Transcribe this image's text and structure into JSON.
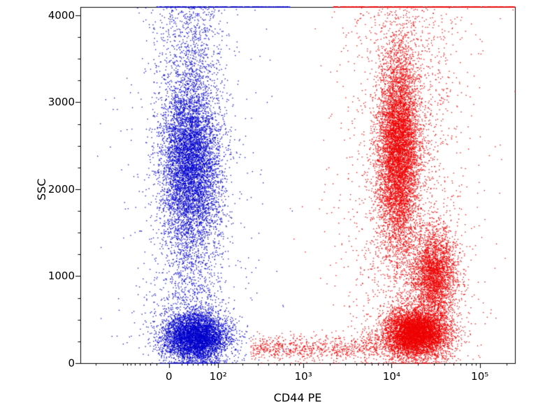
{
  "chart_data": {
    "type": "scatter",
    "title": "",
    "xlabel": "CD44 PE",
    "ylabel": "SSC",
    "grid": false,
    "legend": "none",
    "x_scale": {
      "type": "biexponential",
      "asinh_scale": 60,
      "domain_min": -300,
      "domain_max": 250000
    },
    "y_scale": {
      "type": "linear",
      "min": 0,
      "max": 4095,
      "minor_step": 250
    },
    "x_ticks": [
      {
        "value": 0,
        "label": "0"
      },
      {
        "value": 100,
        "label": "10²"
      },
      {
        "value": 1000,
        "label": "10³"
      },
      {
        "value": 10000,
        "label": "10⁴"
      },
      {
        "value": 100000,
        "label": "10⁵"
      }
    ],
    "y_ticks": [
      {
        "value": 0,
        "label": "0"
      },
      {
        "value": 1000,
        "label": "1000"
      },
      {
        "value": 2000,
        "label": "2000"
      },
      {
        "value": 3000,
        "label": "3000"
      },
      {
        "value": 4000,
        "label": "4000"
      }
    ],
    "colors": {
      "blue_population": "#0000cd",
      "red_population": "#ee0000",
      "axis": "#000000",
      "background": "#ffffff"
    },
    "seed": 42,
    "populations": [
      {
        "name": "blue-negative-core-upper",
        "color": "#0000cd",
        "n": 5200,
        "x": {
          "type": "gauss_t",
          "center": 35,
          "sigma_t": 0.38
        },
        "y": {
          "type": "gauss",
          "center": 2300,
          "sigma": 470
        }
      },
      {
        "name": "blue-negative-core-lower",
        "color": "#0000cd",
        "n": 4800,
        "x": {
          "type": "gauss_t",
          "center": 45,
          "sigma_t": 0.42
        },
        "y": {
          "type": "gauss",
          "center": 300,
          "sigma": 140
        }
      },
      {
        "name": "blue-negative-column",
        "color": "#0000cd",
        "n": 2800,
        "x": {
          "type": "gauss_t",
          "center": 35,
          "sigma_t": 0.45
        },
        "y": {
          "type": "uniform",
          "min": 0,
          "max": 4095
        }
      },
      {
        "name": "blue-stray",
        "color": "#0000cd",
        "n": 500,
        "x": {
          "type": "gauss_t",
          "center": 40,
          "sigma_t": 0.95
        },
        "y": {
          "type": "uniform",
          "min": 0,
          "max": 4095
        }
      },
      {
        "name": "blue-top-pileup",
        "color": "#0000cd",
        "n": 420,
        "x": {
          "type": "uniform_t",
          "min": -20,
          "max": 700
        },
        "y": {
          "type": "const",
          "value": 4095
        }
      },
      {
        "name": "red-positive-band-upper",
        "color": "#ee0000",
        "n": 7200,
        "x": {
          "type": "gauss_t",
          "center": 12000,
          "sigma_t": 0.27
        },
        "y": {
          "type": "gauss",
          "center": 2450,
          "sigma": 580
        }
      },
      {
        "name": "red-positive-blob-low-ssc",
        "color": "#ee0000",
        "n": 6200,
        "x": {
          "type": "gauss_t",
          "center": 19000,
          "sigma_t": 0.42
        },
        "y": {
          "type": "gauss",
          "center": 340,
          "sigma": 140
        }
      },
      {
        "name": "red-positive-cluster-mid",
        "color": "#ee0000",
        "n": 3000,
        "x": {
          "type": "gauss_t",
          "center": 30000,
          "sigma_t": 0.3
        },
        "y": {
          "type": "gauss",
          "center": 1020,
          "sigma": 250
        }
      },
      {
        "name": "red-bottom-trail",
        "color": "#ee0000",
        "n": 750,
        "x": {
          "type": "uniform_t",
          "min": 250,
          "max": 7000
        },
        "y": {
          "type": "gauss",
          "center": 170,
          "sigma": 75
        }
      },
      {
        "name": "red-sparse",
        "color": "#ee0000",
        "n": 2200,
        "x": {
          "type": "gauss_t",
          "center": 15000,
          "sigma_t": 0.85
        },
        "y": {
          "type": "uniform",
          "min": 0,
          "max": 4095
        }
      },
      {
        "name": "red-top-pileup",
        "color": "#ee0000",
        "n": 750,
        "x": {
          "type": "uniform_t",
          "min": 2200,
          "max": 250000
        },
        "y": {
          "type": "const",
          "value": 4095
        }
      }
    ]
  }
}
